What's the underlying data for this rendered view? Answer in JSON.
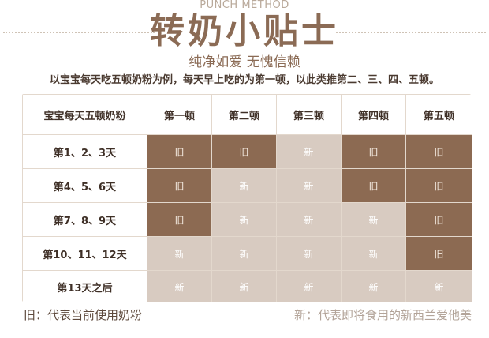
{
  "header": {
    "subtitle_en": "PUNCH METHOD",
    "title": "转奶小贴士",
    "tagline": "纯净如爱 无愧信赖",
    "description": "以宝宝每天吃五顿奶粉为例，每天早上吃的为第一顿，以此类推第二、三、四、五顿。"
  },
  "table": {
    "corner_label": "宝宝每天五顿奶粉",
    "columns": [
      "第一顿",
      "第二顿",
      "第三顿",
      "第四顿",
      "第五顿"
    ],
    "rows": [
      {
        "label": "第1、2、3天",
        "cells": [
          "旧",
          "旧",
          "新",
          "旧",
          "旧"
        ]
      },
      {
        "label": "第4、5、6天",
        "cells": [
          "旧",
          "新",
          "新",
          "旧",
          "旧"
        ]
      },
      {
        "label": "第7、8、9天",
        "cells": [
          "旧",
          "新",
          "新",
          "新",
          "旧"
        ]
      },
      {
        "label": "第10、11、12天",
        "cells": [
          "新",
          "新",
          "新",
          "新",
          "旧"
        ]
      },
      {
        "label": "第13天之后",
        "cells": [
          "新",
          "新",
          "新",
          "新",
          "新"
        ]
      }
    ]
  },
  "legend": {
    "old": "旧：代表当前使用奶粉",
    "new": "新：代表即将食用的新西兰爱他美"
  },
  "colors": {
    "old_cell": "#8c6a52",
    "new_cell": "#d8cbc1",
    "title": "#8b6b55"
  }
}
